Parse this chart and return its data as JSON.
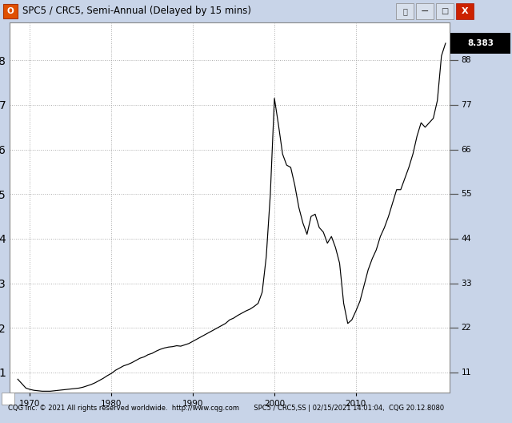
{
  "title": "SPC5 / CRC5, Semi-Annual (Delayed by 15 mins)",
  "footer": "CQG Inc. © 2021 All rights reserved worldwide.  http://www.cqg.com       SPC5 / CRC5,SS | 02/15/2021 14:01:04,  CQG 20.12.8080",
  "price_label": "8.383",
  "ylim": [
    0.55,
    8.85
  ],
  "yticks": [
    1,
    2,
    3,
    4,
    5,
    6,
    7,
    8
  ],
  "xlim": [
    1967.5,
    2021.5
  ],
  "xticks": [
    1970,
    1980,
    1990,
    2000,
    2010
  ],
  "bg_color": "#ffffff",
  "outer_bg": "#c8d4e8",
  "titlebar_color": "#d8e0ec",
  "grid_color": "#999999",
  "line_color": "#000000",
  "x_data": [
    1968.5,
    1969.0,
    1969.5,
    1970.0,
    1970.5,
    1971.0,
    1971.5,
    1972.0,
    1972.5,
    1973.0,
    1973.5,
    1974.0,
    1974.5,
    1975.0,
    1975.5,
    1976.0,
    1976.5,
    1977.0,
    1977.5,
    1978.0,
    1978.5,
    1979.0,
    1979.5,
    1980.0,
    1980.5,
    1981.0,
    1981.5,
    1982.0,
    1982.5,
    1983.0,
    1983.5,
    1984.0,
    1984.5,
    1985.0,
    1985.5,
    1986.0,
    1986.5,
    1987.0,
    1987.5,
    1988.0,
    1988.5,
    1989.0,
    1989.5,
    1990.0,
    1990.5,
    1991.0,
    1991.5,
    1992.0,
    1992.5,
    1993.0,
    1993.5,
    1994.0,
    1994.5,
    1995.0,
    1995.5,
    1996.0,
    1996.5,
    1997.0,
    1997.5,
    1998.0,
    1998.5,
    1999.0,
    1999.5,
    2000.0,
    2000.5,
    2001.0,
    2001.5,
    2002.0,
    2002.5,
    2003.0,
    2003.5,
    2004.0,
    2004.5,
    2005.0,
    2005.5,
    2006.0,
    2006.5,
    2007.0,
    2007.5,
    2008.0,
    2008.5,
    2009.0,
    2009.5,
    2010.0,
    2010.5,
    2011.0,
    2011.5,
    2012.0,
    2012.5,
    2013.0,
    2013.5,
    2014.0,
    2014.5,
    2015.0,
    2015.5,
    2016.0,
    2016.5,
    2017.0,
    2017.5,
    2018.0,
    2018.5,
    2019.0,
    2019.5,
    2020.0,
    2020.5,
    2021.0
  ],
  "y_data": [
    0.85,
    0.75,
    0.65,
    0.62,
    0.6,
    0.59,
    0.58,
    0.58,
    0.58,
    0.59,
    0.6,
    0.61,
    0.62,
    0.63,
    0.64,
    0.65,
    0.67,
    0.7,
    0.73,
    0.77,
    0.82,
    0.87,
    0.93,
    0.98,
    1.05,
    1.1,
    1.15,
    1.18,
    1.22,
    1.27,
    1.32,
    1.35,
    1.4,
    1.43,
    1.48,
    1.52,
    1.55,
    1.57,
    1.58,
    1.6,
    1.59,
    1.62,
    1.65,
    1.7,
    1.75,
    1.8,
    1.85,
    1.9,
    1.95,
    2.0,
    2.05,
    2.1,
    2.18,
    2.22,
    2.28,
    2.33,
    2.38,
    2.42,
    2.48,
    2.55,
    2.8,
    3.6,
    5.0,
    7.15,
    6.55,
    5.9,
    5.65,
    5.6,
    5.2,
    4.7,
    4.35,
    4.1,
    4.5,
    4.55,
    4.25,
    4.15,
    3.9,
    4.05,
    3.8,
    3.45,
    2.55,
    2.1,
    2.18,
    2.38,
    2.6,
    2.95,
    3.3,
    3.55,
    3.75,
    4.05,
    4.25,
    4.5,
    4.8,
    5.1,
    5.1,
    5.35,
    5.6,
    5.9,
    6.3,
    6.6,
    6.5,
    6.6,
    6.7,
    7.1,
    8.1,
    8.383
  ]
}
